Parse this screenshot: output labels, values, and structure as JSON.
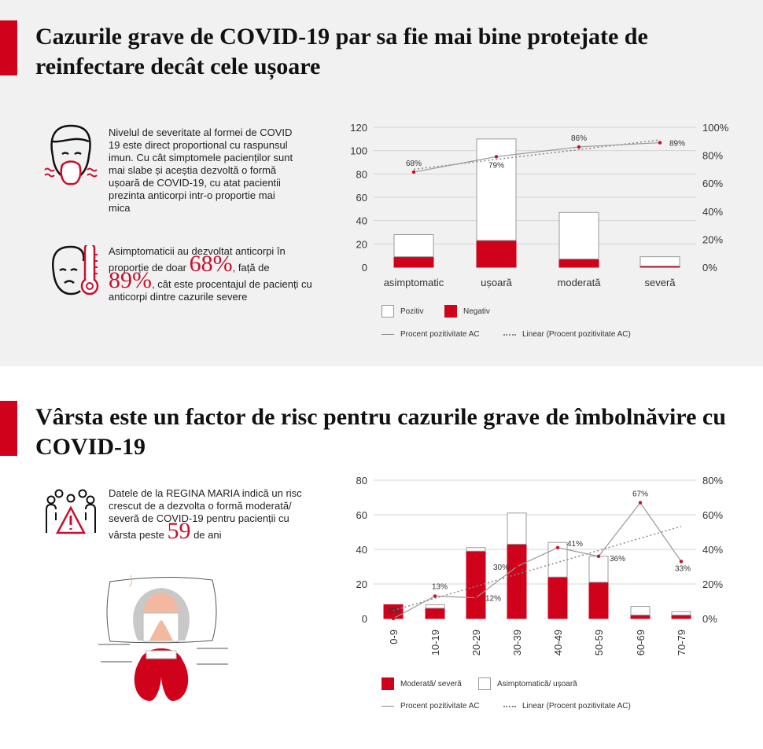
{
  "section1": {
    "title": "Cazurile grave de COVID-19 par sa fie mai bine protejate de reinfectare decât cele ușoare",
    "paragraph1": "Nivelul de severitate al formei de COVID 19 este direct proportional cu raspunsul imun. Cu cât simptomele pacienților sunt mai slabe și aceștia dezvoltă o formă ușoară de COVID-19, cu atat pacientii prezinta anticorpi intr-o proportie mai mica",
    "p2_a": "Asimptomaticii au dezvoltat anticorpi în proporție de doar",
    "p2_big1": "68%",
    "p2_b": ", față de",
    "p2_big2": "89%",
    "p2_c": ", cât este procentajul de pacienți cu anticorpi dintre cazurile severe"
  },
  "section2": {
    "title": "Vârsta este un factor de risc pentru cazurile grave de îmbolnăvire cu COVID-19",
    "p_a": "Datele de la REGINA MARIA indică un risc crescut de a dezvolta o formă moderată/ severă de COVID-19 pentru pacienții cu vârsta peste",
    "p_big": "59",
    "p_b": "de ani"
  },
  "colors": {
    "accent": "#d0021b",
    "line": "#888888",
    "point": "#c8102e",
    "bg_top": "#f1f1f1"
  },
  "icons": [
    "sneezing-man-icon",
    "fever-thermometer-icon",
    "group-warning-icon",
    "sick-woman-illustration"
  ],
  "chart_data": [
    {
      "type": "bar",
      "stacked": true,
      "categories": [
        "asimptomatic",
        "ușoară",
        "moderată",
        "severă"
      ],
      "series": [
        {
          "name": "Negativ",
          "values": [
            9,
            23,
            7,
            1
          ],
          "color": "#d0021b"
        },
        {
          "name": "Pozitiv",
          "values": [
            19,
            87,
            40,
            8
          ],
          "color": "#ffffff"
        }
      ],
      "line": {
        "name": "Procent pozitivitate AC",
        "values": [
          68,
          79,
          86,
          89
        ],
        "labels": [
          "68%",
          "79%",
          "86%",
          "89%"
        ]
      },
      "trendline": {
        "name": "Linear (Procent pozitivitate AC)"
      },
      "ylim": [
        0,
        120
      ],
      "yticks": [
        "0",
        "20",
        "40",
        "60",
        "80",
        "100",
        "120"
      ],
      "y2lim": [
        0,
        100
      ],
      "y2ticks": [
        "0%",
        "20%",
        "40%",
        "60%",
        "80%",
        "100%"
      ],
      "grid": true,
      "legend": "bottom"
    },
    {
      "type": "bar",
      "stacked": true,
      "categories": [
        "0-9",
        "10-19",
        "20-29",
        "30-39",
        "40-49",
        "50-59",
        "60-69",
        "70-79"
      ],
      "series": [
        {
          "name": "Moderată/ severă",
          "values": [
            8,
            6,
            39,
            43,
            24,
            21,
            2,
            2
          ],
          "color": "#d0021b"
        },
        {
          "name": "Asimptomatică/ ușoară",
          "values": [
            0,
            2,
            2,
            18,
            20,
            15,
            5,
            2
          ],
          "color": "#ffffff"
        }
      ],
      "line": {
        "name": "Procent pozitivitate AC",
        "values": [
          0,
          13,
          12,
          30,
          41,
          36,
          67,
          33
        ],
        "labels": [
          "0%",
          "13%",
          "12%",
          "30%",
          "41%",
          "36%",
          "67%",
          "33%"
        ]
      },
      "trendline": {
        "name": "Linear (Procent pozitivitate AC)"
      },
      "ylim": [
        0,
        80
      ],
      "yticks": [
        "0",
        "20",
        "40",
        "60",
        "80"
      ],
      "y2lim": [
        0,
        80
      ],
      "y2ticks": [
        "0%",
        "20%",
        "40%",
        "60%",
        "80%"
      ],
      "grid": true,
      "legend": "bottom"
    }
  ]
}
